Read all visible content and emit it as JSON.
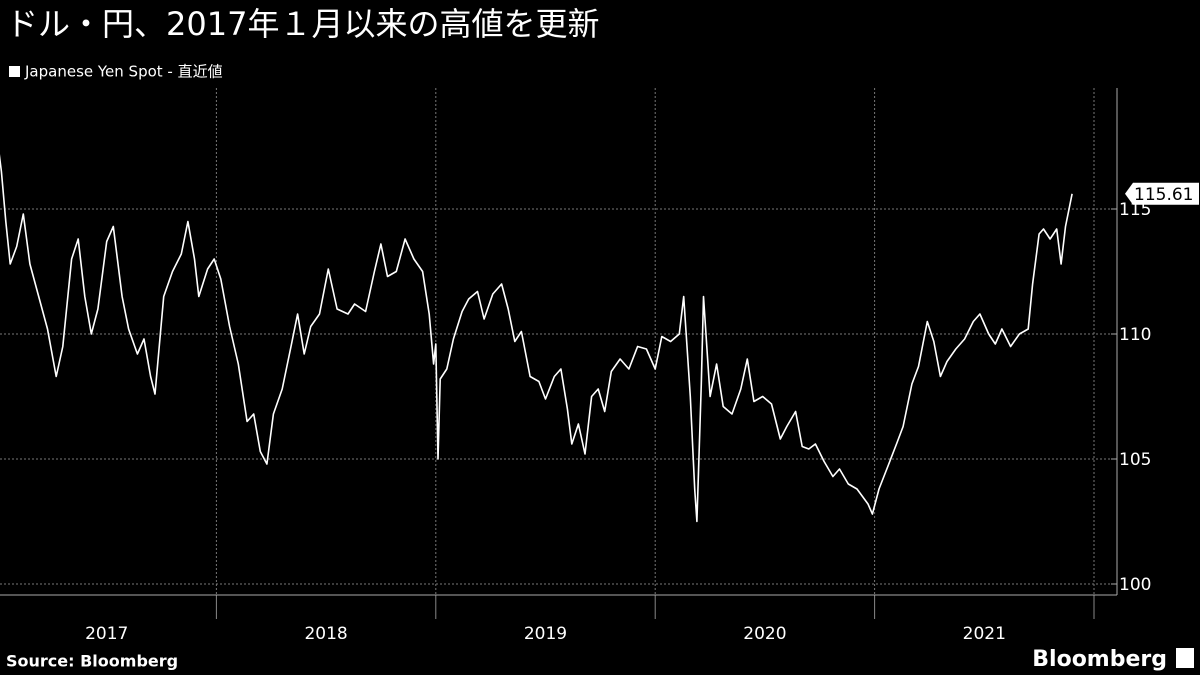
{
  "chart_data": {
    "type": "line",
    "title": "ドル・円、2017年１月以来の高値を更新",
    "source": "Source: Bloomberg",
    "brand": "Bloomberg",
    "x": [
      2017.0,
      2017.02,
      2017.04,
      2017.06,
      2017.09,
      2017.12,
      2017.15,
      2017.19,
      2017.23,
      2017.27,
      2017.3,
      2017.34,
      2017.37,
      2017.4,
      2017.43,
      2017.46,
      2017.5,
      2017.53,
      2017.57,
      2017.6,
      2017.64,
      2017.67,
      2017.7,
      2017.72,
      2017.76,
      2017.8,
      2017.84,
      2017.87,
      2017.9,
      2017.92,
      2017.96,
      2017.99,
      2018.02,
      2018.06,
      2018.1,
      2018.14,
      2018.17,
      2018.2,
      2018.23,
      2018.26,
      2018.3,
      2018.34,
      2018.37,
      2018.4,
      2018.43,
      2018.47,
      2018.51,
      2018.55,
      2018.6,
      2018.63,
      2018.68,
      2018.72,
      2018.75,
      2018.78,
      2018.82,
      2018.86,
      2018.9,
      2018.94,
      2018.97,
      2018.99,
      2019.0,
      2019.01,
      2019.02,
      2019.05,
      2019.08,
      2019.12,
      2019.15,
      2019.19,
      2019.22,
      2019.26,
      2019.3,
      2019.33,
      2019.36,
      2019.39,
      2019.43,
      2019.47,
      2019.5,
      2019.54,
      2019.57,
      2019.6,
      2019.62,
      2019.65,
      2019.68,
      2019.71,
      2019.74,
      2019.77,
      2019.8,
      2019.84,
      2019.88,
      2019.92,
      2019.96,
      2020.0,
      2020.03,
      2020.07,
      2020.11,
      2020.13,
      2020.16,
      2020.18,
      2020.19,
      2020.21,
      2020.22,
      2020.25,
      2020.28,
      2020.31,
      2020.35,
      2020.39,
      2020.42,
      2020.45,
      2020.49,
      2020.53,
      2020.57,
      2020.6,
      2020.64,
      2020.67,
      2020.7,
      2020.73,
      2020.77,
      2020.81,
      2020.84,
      2020.88,
      2020.92,
      2020.97,
      2020.99,
      2021.02,
      2021.06,
      2021.1,
      2021.13,
      2021.17,
      2021.2,
      2021.24,
      2021.27,
      2021.3,
      2021.33,
      2021.37,
      2021.41,
      2021.45,
      2021.48,
      2021.52,
      2021.55,
      2021.58,
      2021.62,
      2021.66,
      2021.7,
      2021.72,
      2021.75,
      2021.77,
      2021.8,
      2021.83,
      2021.85,
      2021.87,
      2021.9
    ],
    "series": [
      {
        "name": "Japanese Yen Spot - 直近値",
        "color": "#ffffff",
        "values": [
          117.9,
          116.5,
          114.5,
          112.8,
          113.5,
          114.8,
          112.8,
          111.5,
          110.2,
          108.3,
          109.5,
          113.0,
          113.8,
          111.5,
          110.0,
          111.0,
          113.7,
          114.3,
          111.5,
          110.2,
          109.2,
          109.8,
          108.3,
          107.6,
          111.5,
          112.5,
          113.2,
          114.5,
          113.0,
          111.5,
          112.6,
          113.0,
          112.2,
          110.3,
          108.8,
          106.5,
          106.8,
          105.3,
          104.8,
          106.8,
          107.8,
          109.5,
          110.8,
          109.2,
          110.3,
          110.8,
          112.6,
          111.0,
          110.8,
          111.2,
          110.9,
          112.5,
          113.6,
          112.3,
          112.5,
          113.8,
          113.0,
          112.5,
          110.8,
          108.8,
          109.6,
          105.0,
          108.2,
          108.6,
          109.8,
          110.9,
          111.4,
          111.7,
          110.6,
          111.6,
          112.0,
          111.0,
          109.7,
          110.1,
          108.3,
          108.1,
          107.4,
          108.3,
          108.6,
          107.0,
          105.6,
          106.4,
          105.2,
          107.5,
          107.8,
          106.9,
          108.5,
          109.0,
          108.6,
          109.5,
          109.4,
          108.6,
          109.9,
          109.7,
          110.0,
          111.5,
          107.5,
          103.8,
          102.5,
          108.0,
          111.5,
          107.5,
          108.8,
          107.1,
          106.8,
          107.8,
          109.0,
          107.3,
          107.5,
          107.2,
          105.8,
          106.3,
          106.9,
          105.5,
          105.4,
          105.6,
          104.9,
          104.3,
          104.6,
          104.0,
          103.8,
          103.2,
          102.8,
          103.8,
          104.7,
          105.6,
          106.3,
          108.0,
          108.7,
          110.5,
          109.7,
          108.3,
          108.9,
          109.4,
          109.8,
          110.5,
          110.8,
          110.0,
          109.6,
          110.2,
          109.5,
          110.0,
          110.2,
          112.0,
          114.0,
          114.2,
          113.8,
          114.2,
          112.8,
          114.3,
          115.61
        ]
      }
    ],
    "xlim": [
      2017,
      2022
    ],
    "xticks": [
      {
        "value": 2017.5,
        "label": "2017"
      },
      {
        "value": 2018.5,
        "label": "2018"
      },
      {
        "value": 2019.5,
        "label": "2019"
      },
      {
        "value": 2020.5,
        "label": "2020"
      },
      {
        "value": 2021.5,
        "label": "2021"
      }
    ],
    "ylim": [
      99.56,
      119.84
    ],
    "yticks": [
      100,
      105,
      110,
      115
    ],
    "grid": true
  }
}
